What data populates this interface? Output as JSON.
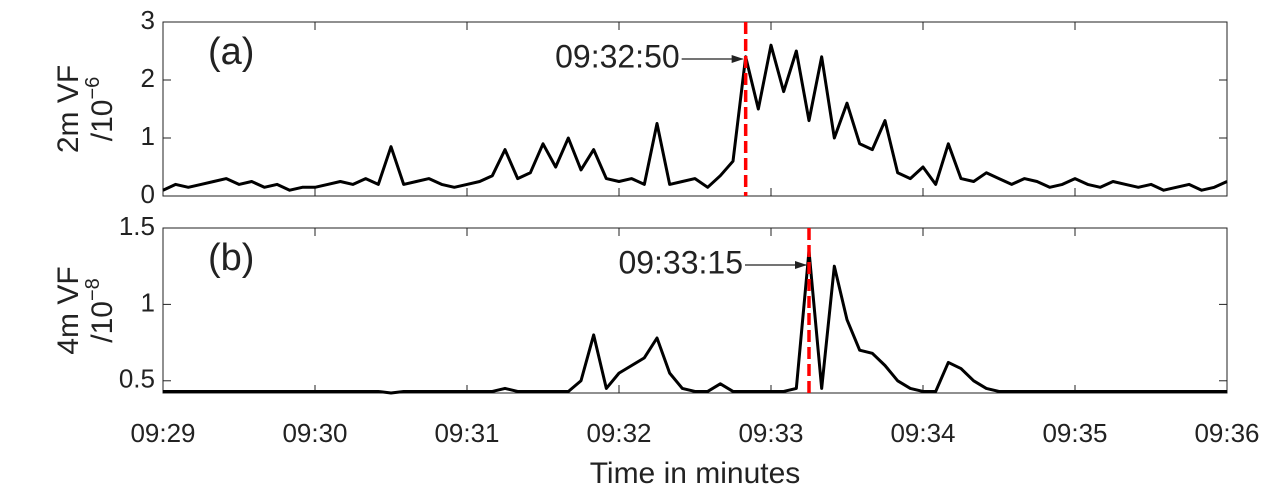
{
  "chart_data": [
    {
      "type": "line",
      "panel_label": "(a)",
      "ylabel": "2m VF",
      "ylabel_unit": "/10",
      "ylabel_exponent": "−6",
      "ylim": [
        0,
        3
      ],
      "yticks": [
        0,
        1,
        2,
        3
      ],
      "xlim": [
        34140,
        34560
      ],
      "x": [
        34140,
        34145,
        34150,
        34155,
        34160,
        34165,
        34170,
        34175,
        34180,
        34185,
        34190,
        34195,
        34200,
        34205,
        34210,
        34215,
        34220,
        34225,
        34230,
        34235,
        34240,
        34245,
        34250,
        34255,
        34260,
        34265,
        34270,
        34275,
        34280,
        34285,
        34290,
        34295,
        34300,
        34305,
        34310,
        34315,
        34320,
        34325,
        34330,
        34335,
        34340,
        34345,
        34350,
        34355,
        34360,
        34365,
        34370,
        34375,
        34380,
        34385,
        34390,
        34395,
        34400,
        34405,
        34410,
        34415,
        34420,
        34425,
        34430,
        34435,
        34440,
        34445,
        34450,
        34455,
        34460,
        34465,
        34470,
        34475,
        34480,
        34485,
        34490,
        34495,
        34500,
        34505,
        34510,
        34515,
        34520,
        34525,
        34530,
        34535,
        34540,
        34545,
        34550,
        34555,
        34560
      ],
      "series": [
        {
          "color": "#000000",
          "values": [
            0.1,
            0.2,
            0.15,
            0.2,
            0.25,
            0.3,
            0.2,
            0.25,
            0.15,
            0.2,
            0.1,
            0.15,
            0.15,
            0.2,
            0.25,
            0.2,
            0.3,
            0.2,
            0.85,
            0.2,
            0.25,
            0.3,
            0.2,
            0.15,
            0.2,
            0.25,
            0.35,
            0.8,
            0.3,
            0.4,
            0.9,
            0.5,
            1.0,
            0.45,
            0.8,
            0.3,
            0.25,
            0.3,
            0.2,
            1.25,
            0.2,
            0.25,
            0.3,
            0.15,
            0.35,
            0.6,
            2.4,
            1.5,
            2.6,
            1.8,
            2.5,
            1.3,
            2.4,
            1.0,
            1.6,
            0.9,
            0.8,
            1.3,
            0.4,
            0.3,
            0.5,
            0.2,
            0.9,
            0.3,
            0.25,
            0.4,
            0.3,
            0.2,
            0.3,
            0.25,
            0.15,
            0.2,
            0.3,
            0.2,
            0.15,
            0.25,
            0.2,
            0.15,
            0.2,
            0.1,
            0.15,
            0.2,
            0.1,
            0.15,
            0.25
          ]
        }
      ],
      "annotation": {
        "text": "09:32:50",
        "x": 34370,
        "color": "#ff0000"
      }
    },
    {
      "type": "line",
      "panel_label": "(b)",
      "ylabel": "4m VF",
      "ylabel_unit": "/10",
      "ylabel_exponent": "−8",
      "ylim": [
        0.42,
        1.5
      ],
      "yticks": [
        0.5,
        1,
        1.5
      ],
      "xlim": [
        34140,
        34560
      ],
      "xticks": [
        {
          "value": 34140,
          "label": "09:29"
        },
        {
          "value": 34200,
          "label": "09:30"
        },
        {
          "value": 34260,
          "label": "09:31"
        },
        {
          "value": 34320,
          "label": "09:32"
        },
        {
          "value": 34380,
          "label": "09:33"
        },
        {
          "value": 34440,
          "label": "09:34"
        },
        {
          "value": 34500,
          "label": "09:35"
        },
        {
          "value": 34560,
          "label": "09:36"
        }
      ],
      "xlabel": "Time in minutes",
      "x": [
        34140,
        34145,
        34150,
        34155,
        34160,
        34165,
        34170,
        34175,
        34180,
        34185,
        34190,
        34195,
        34200,
        34205,
        34210,
        34215,
        34220,
        34225,
        34230,
        34235,
        34240,
        34245,
        34250,
        34255,
        34260,
        34265,
        34270,
        34275,
        34280,
        34285,
        34290,
        34295,
        34300,
        34305,
        34310,
        34315,
        34320,
        34325,
        34330,
        34335,
        34340,
        34345,
        34350,
        34355,
        34360,
        34365,
        34370,
        34375,
        34380,
        34385,
        34390,
        34395,
        34400,
        34405,
        34410,
        34415,
        34420,
        34425,
        34430,
        34435,
        34440,
        34445,
        34450,
        34455,
        34460,
        34465,
        34470,
        34475,
        34480,
        34485,
        34490,
        34495,
        34500,
        34505,
        34510,
        34515,
        34520,
        34525,
        34530,
        34535,
        34540,
        34545,
        34550,
        34555,
        34560
      ],
      "series": [
        {
          "color": "#000000",
          "values": [
            0.43,
            0.43,
            0.43,
            0.43,
            0.43,
            0.43,
            0.43,
            0.43,
            0.43,
            0.43,
            0.43,
            0.43,
            0.43,
            0.43,
            0.43,
            0.43,
            0.43,
            0.43,
            0.42,
            0.43,
            0.43,
            0.43,
            0.43,
            0.43,
            0.43,
            0.43,
            0.43,
            0.45,
            0.43,
            0.43,
            0.43,
            0.43,
            0.43,
            0.5,
            0.8,
            0.45,
            0.55,
            0.6,
            0.65,
            0.78,
            0.55,
            0.45,
            0.43,
            0.43,
            0.48,
            0.43,
            0.43,
            0.43,
            0.43,
            0.43,
            0.45,
            1.35,
            0.45,
            1.25,
            0.9,
            0.7,
            0.68,
            0.6,
            0.5,
            0.45,
            0.43,
            0.43,
            0.62,
            0.58,
            0.5,
            0.45,
            0.43,
            0.43,
            0.43,
            0.43,
            0.43,
            0.43,
            0.43,
            0.43,
            0.43,
            0.43,
            0.43,
            0.43,
            0.43,
            0.43,
            0.43,
            0.43,
            0.43,
            0.43,
            0.43
          ]
        }
      ],
      "annotation": {
        "text": "09:33:15",
        "x": 34395,
        "color": "#ff0000"
      }
    }
  ]
}
